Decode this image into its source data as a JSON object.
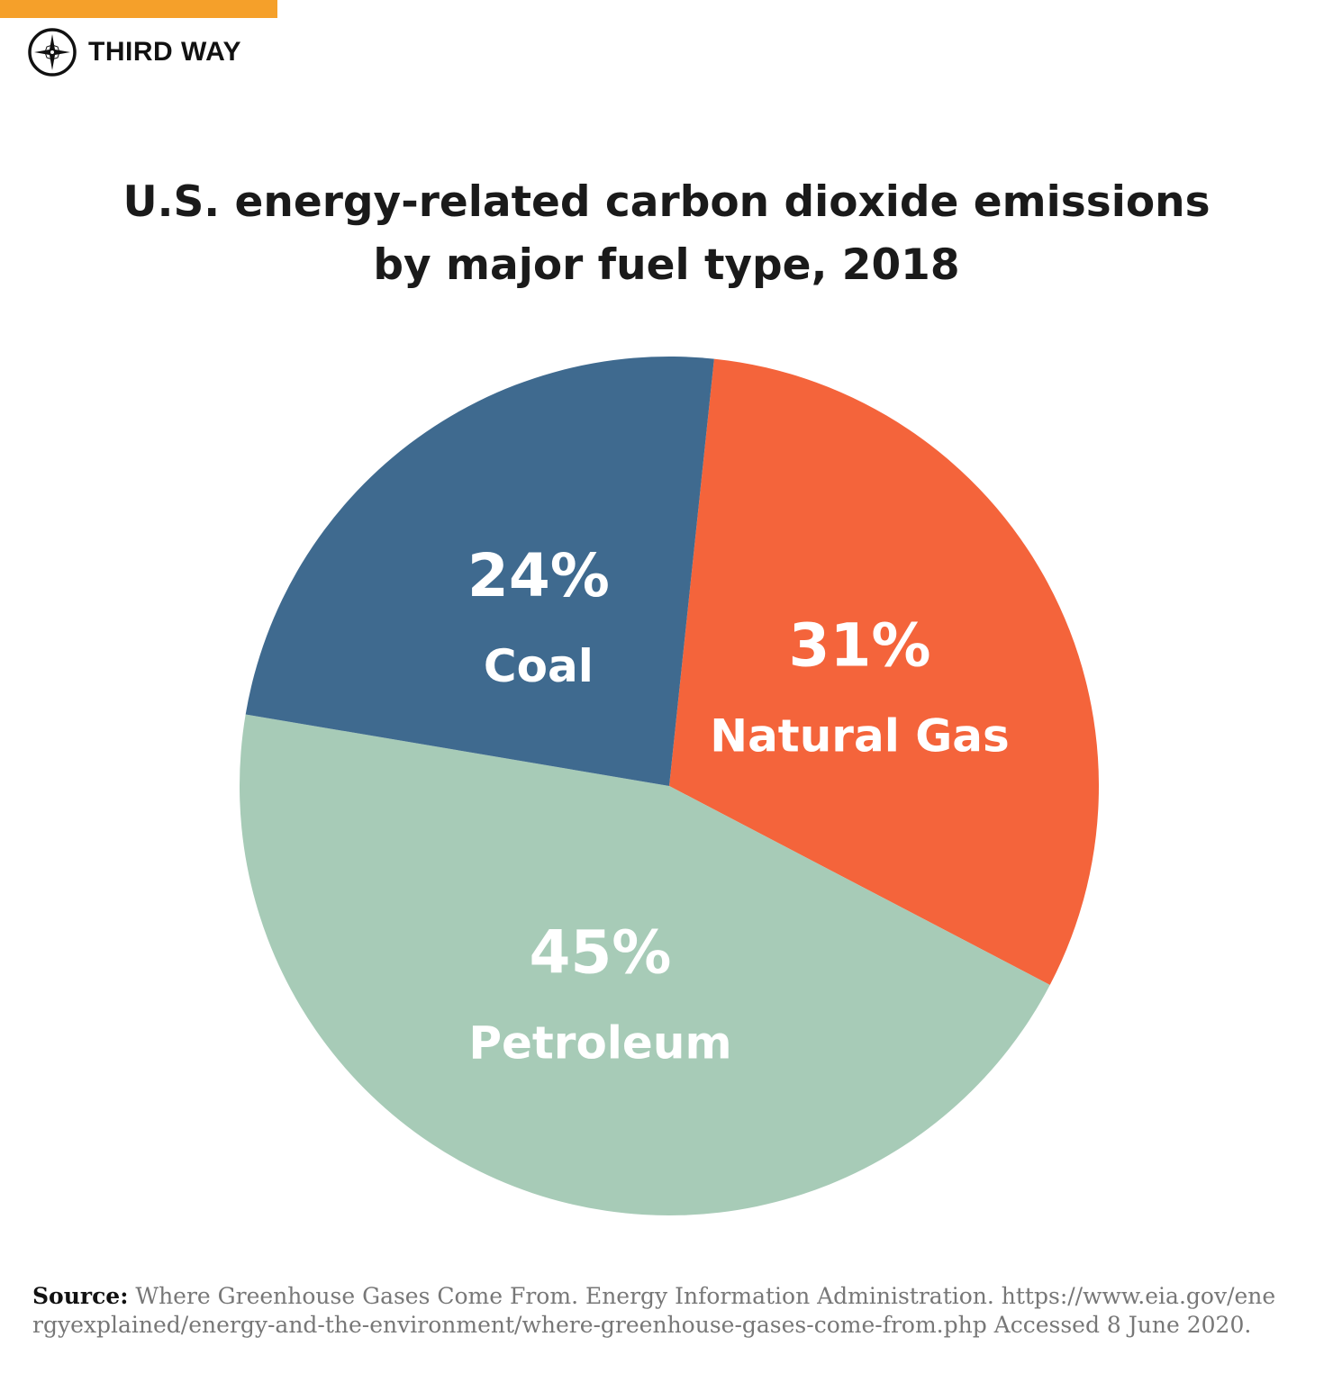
{
  "brand": {
    "name": "THIRD WAY",
    "accent": "#f5a02a",
    "icon": "compass-icon"
  },
  "title_lines": [
    "U.S. energy-related carbon dioxide emissions",
    "by major fuel type, 2018"
  ],
  "chart_data": {
    "type": "pie",
    "title": "U.S. energy-related carbon dioxide emissions by major fuel type, 2018",
    "start_angle_deg_clockwise_from_top": 6,
    "slices": [
      {
        "label": "Natural Gas",
        "value": 31,
        "display": "31%",
        "color": "#f4643b"
      },
      {
        "label": "Petroleum",
        "value": 45,
        "display": "45%",
        "color": "#a7cbb7"
      },
      {
        "label": "Coal",
        "value": 24,
        "display": "24%",
        "color": "#3f6a8f"
      }
    ]
  },
  "source": {
    "label": "Source:",
    "text": " Where Greenhouse Gases Come From. Energy Information Administration. https://www.eia.gov/energyexplained/energy-and-the-environment/where-greenhouse-gases-come-from.php Accessed 8 June 2020."
  }
}
